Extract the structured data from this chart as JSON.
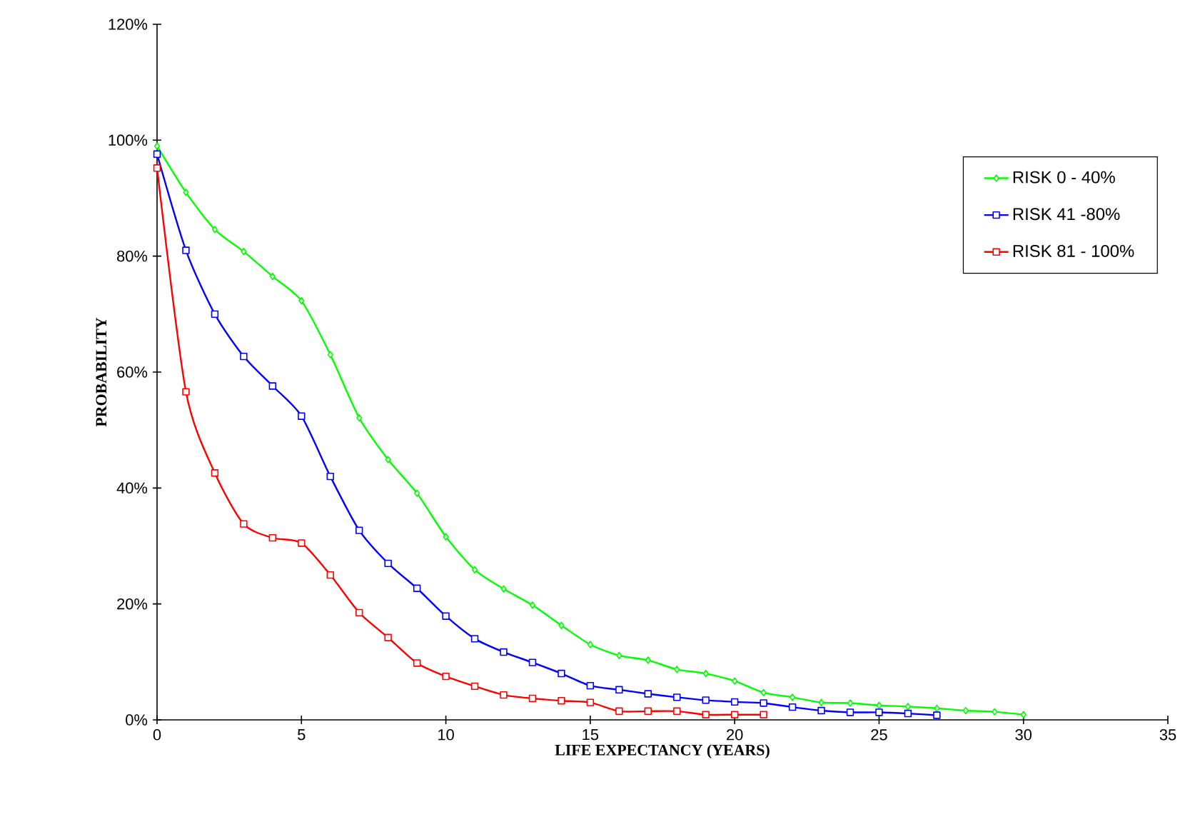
{
  "chart_data": {
    "type": "line",
    "xlabel": "LIFE EXPECTANCY (YEARS)",
    "ylabel": "PROBABILITY",
    "xlim": [
      0,
      35
    ],
    "xticks": [
      0,
      5,
      10,
      15,
      20,
      25,
      30,
      35
    ],
    "ylim": [
      0,
      120
    ],
    "yticks": [
      {
        "value": 0,
        "label": "0%"
      },
      {
        "value": 20,
        "label": "20%"
      },
      {
        "value": 40,
        "label": "40%"
      },
      {
        "value": 60,
        "label": "60%"
      },
      {
        "value": 80,
        "label": "80%"
      },
      {
        "value": 100,
        "label": "100%"
      },
      {
        "value": 120,
        "label": "120%"
      }
    ],
    "grid": false,
    "legend": "top right",
    "line_style": "solid",
    "series": [
      {
        "name": "RISK 0 - 40%",
        "color": "#00ff00",
        "marker": "diamond",
        "x": [
          0,
          1,
          2,
          3,
          4,
          5,
          6,
          7,
          8,
          9,
          10,
          11,
          12,
          13,
          14,
          15,
          16,
          17,
          18,
          19,
          20,
          21,
          22,
          23,
          24,
          25,
          26,
          27,
          28,
          29,
          30
        ],
        "values": [
          99,
          91,
          84.6,
          80.8,
          76.5,
          72.3,
          63,
          52.1,
          44.9,
          39.1,
          31.6,
          25.9,
          22.6,
          19.8,
          16.3,
          13.0,
          11.1,
          10.3,
          8.7,
          8.0,
          6.7,
          4.7,
          3.9,
          3.0,
          2.9,
          2.5,
          2.3,
          2.0,
          1.6,
          1.4,
          0.9
        ]
      },
      {
        "name": "RISK 41 -80%",
        "color": "#0000ff",
        "marker": "square",
        "x": [
          0,
          1,
          2,
          3,
          4,
          5,
          6,
          7,
          8,
          9,
          10,
          11,
          12,
          13,
          14,
          15,
          16,
          17,
          18,
          19,
          20,
          21,
          22,
          23,
          24,
          25,
          26,
          27
        ],
        "values": [
          97.6,
          81.0,
          70.0,
          62.7,
          57.6,
          52.4,
          42.0,
          32.7,
          27.0,
          22.7,
          17.9,
          14.0,
          11.7,
          9.9,
          8.0,
          5.9,
          5.2,
          4.5,
          3.9,
          3.4,
          3.1,
          2.9,
          2.2,
          1.6,
          1.3,
          1.3,
          1.1,
          0.8
        ]
      },
      {
        "name": "RISK 81 - 100%",
        "color": "#ff0000",
        "marker": "square",
        "x": [
          0,
          1,
          2,
          3,
          4,
          5,
          6,
          7,
          8,
          9,
          10,
          11,
          12,
          13,
          14,
          15,
          16,
          17,
          18,
          19,
          20,
          21
        ],
        "values": [
          95.2,
          56.6,
          42.6,
          33.8,
          31.4,
          30.5,
          25.0,
          18.5,
          14.2,
          9.8,
          7.5,
          5.8,
          4.3,
          3.7,
          3.3,
          3.0,
          1.5,
          1.5,
          1.5,
          0.9,
          0.9,
          0.9
        ]
      }
    ]
  }
}
